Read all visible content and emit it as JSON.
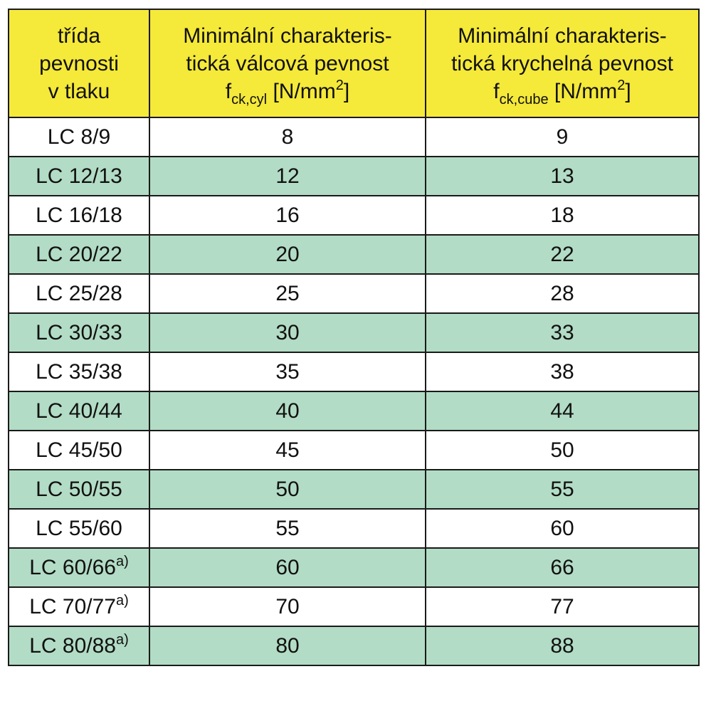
{
  "table": {
    "header": {
      "col1": {
        "line1": "třída",
        "line2": "pevnosti",
        "line3": "v tlaku"
      },
      "col2": {
        "line1": "Minimální charakteris-",
        "line2": "tická válcová pevnost",
        "symbol": "f",
        "subscript": "ck,cyl",
        "unit_open": " [N/mm",
        "unit_sup": "2",
        "unit_close": "]"
      },
      "col3": {
        "line1": "Minimální charakteris-",
        "line2": "tická krychelná pevnost",
        "symbol": "f",
        "subscript": "ck,cube",
        "unit_open": " [N/mm",
        "unit_sup": "2",
        "unit_close": "]"
      }
    },
    "rows": [
      {
        "cls": "LC 8/9",
        "note": "",
        "fck_cyl": "8",
        "fck_cube": "9"
      },
      {
        "cls": "LC 12/13",
        "note": "",
        "fck_cyl": "12",
        "fck_cube": "13"
      },
      {
        "cls": "LC 16/18",
        "note": "",
        "fck_cyl": "16",
        "fck_cube": "18"
      },
      {
        "cls": "LC 20/22",
        "note": "",
        "fck_cyl": "20",
        "fck_cube": "22"
      },
      {
        "cls": "LC 25/28",
        "note": "",
        "fck_cyl": "25",
        "fck_cube": "28"
      },
      {
        "cls": "LC 30/33",
        "note": "",
        "fck_cyl": "30",
        "fck_cube": "33"
      },
      {
        "cls": "LC 35/38",
        "note": "",
        "fck_cyl": "35",
        "fck_cube": "38"
      },
      {
        "cls": "LC 40/44",
        "note": "",
        "fck_cyl": "40",
        "fck_cube": "44"
      },
      {
        "cls": "LC 45/50",
        "note": "",
        "fck_cyl": "45",
        "fck_cube": "50"
      },
      {
        "cls": "LC 50/55",
        "note": "",
        "fck_cyl": "50",
        "fck_cube": "55"
      },
      {
        "cls": "LC 55/60",
        "note": "",
        "fck_cyl": "55",
        "fck_cube": "60"
      },
      {
        "cls": "LC 60/66",
        "note": "a)",
        "fck_cyl": "60",
        "fck_cube": "66"
      },
      {
        "cls": "LC 70/77",
        "note": "a)",
        "fck_cyl": "70",
        "fck_cube": "77"
      },
      {
        "cls": "LC 80/88",
        "note": "a)",
        "fck_cyl": "80",
        "fck_cube": "88"
      }
    ]
  },
  "colors": {
    "header_bg": "#f5e93a",
    "stripe_bg": "#b2dcc5",
    "row_bg": "#ffffff",
    "border": "#1a1a1a"
  }
}
